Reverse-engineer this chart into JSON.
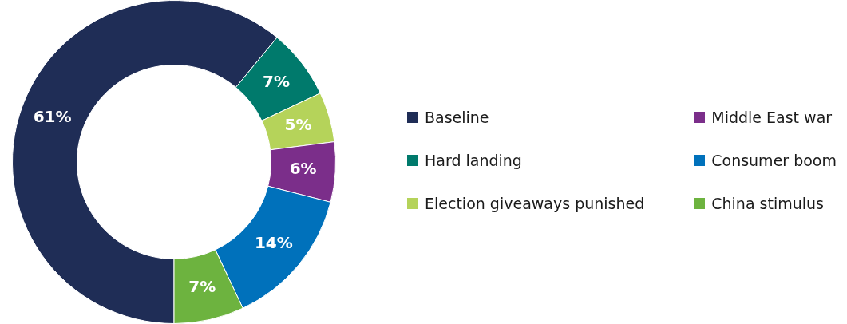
{
  "chart_data": {
    "type": "donut",
    "categories": [
      "Baseline",
      "Hard landing",
      "Election giveaways punished",
      "Middle East war",
      "Consumer boom",
      "China stimulus"
    ],
    "values": [
      61,
      7,
      5,
      6,
      14,
      7
    ],
    "colors": [
      "#1f2d56",
      "#007a6c",
      "#b5d35a",
      "#7b2e8a",
      "#0071bb",
      "#6db33f"
    ],
    "value_labels": [
      "61%",
      "7%",
      "5%",
      "6%",
      "14%",
      "7%"
    ],
    "legend": "right"
  }
}
